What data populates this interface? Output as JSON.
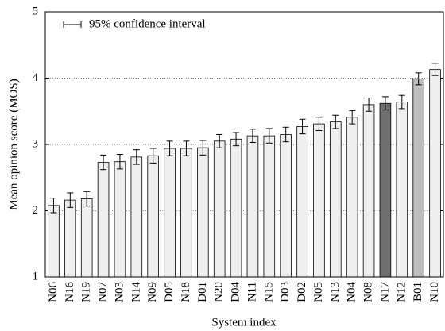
{
  "chart_data": {
    "type": "bar",
    "xlabel": "System index",
    "ylabel": "Mean opinion score (MOS)",
    "categories": [
      "N06",
      "N16",
      "N19",
      "N07",
      "N03",
      "N14",
      "N09",
      "D05",
      "N18",
      "D01",
      "N20",
      "D04",
      "N11",
      "N15",
      "D03",
      "D02",
      "N05",
      "N13",
      "N04",
      "N08",
      "N17",
      "N12",
      "B01",
      "N10"
    ],
    "values": [
      2.08,
      2.16,
      2.18,
      2.73,
      2.74,
      2.81,
      2.83,
      2.94,
      2.94,
      2.95,
      3.05,
      3.08,
      3.13,
      3.13,
      3.15,
      3.27,
      3.31,
      3.34,
      3.41,
      3.6,
      3.62,
      3.64,
      3.99,
      4.13
    ],
    "errors": [
      0.11,
      0.11,
      0.11,
      0.11,
      0.11,
      0.11,
      0.11,
      0.11,
      0.11,
      0.11,
      0.1,
      0.1,
      0.1,
      0.11,
      0.11,
      0.11,
      0.1,
      0.1,
      0.1,
      0.1,
      0.1,
      0.1,
      0.09,
      0.09
    ],
    "colors": [
      "#efefef",
      "#efefef",
      "#efefef",
      "#efefef",
      "#efefef",
      "#efefef",
      "#efefef",
      "#efefef",
      "#efefef",
      "#efefef",
      "#efefef",
      "#efefef",
      "#efefef",
      "#efefef",
      "#efefef",
      "#efefef",
      "#efefef",
      "#efefef",
      "#efefef",
      "#efefef",
      "#707070",
      "#efefef",
      "#bdbdbd",
      "#efefef"
    ],
    "legend": {
      "label": "95% confidence interval",
      "corner": "upper left"
    },
    "ylim": [
      1,
      5
    ],
    "yticks": [
      1,
      2,
      3,
      4,
      5
    ],
    "grid": true
  }
}
